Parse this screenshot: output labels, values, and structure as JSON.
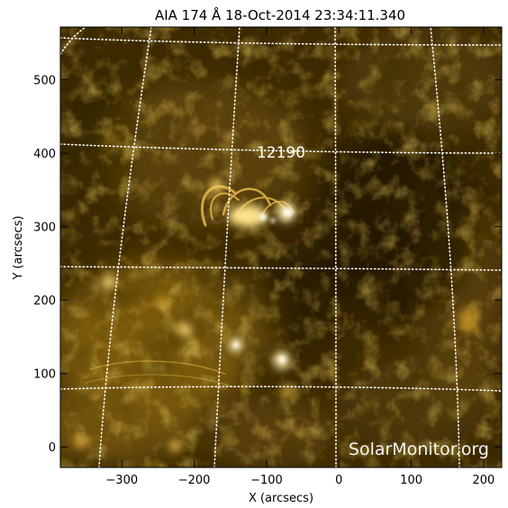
{
  "title": "AIA 174 Å 18-Oct-2014 23:34:11.340",
  "xlabel": "X (arcsecs)",
  "ylabel": "Y (arcsecs)",
  "watermark": "SolarMonitor.org",
  "region_label": "12190",
  "x_axis": {
    "range": [
      -385,
      225
    ],
    "ticks": [
      {
        "value": -300,
        "label": "−300"
      },
      {
        "value": -200,
        "label": "−200"
      },
      {
        "value": -100,
        "label": "−100"
      },
      {
        "value": 0,
        "label": "0"
      },
      {
        "value": 100,
        "label": "100"
      },
      {
        "value": 200,
        "label": "200"
      }
    ]
  },
  "y_axis": {
    "range": [
      -28,
      572
    ],
    "ticks": [
      {
        "value": 0,
        "label": "0"
      },
      {
        "value": 100,
        "label": "100"
      },
      {
        "value": 200,
        "label": "200"
      },
      {
        "value": 300,
        "label": "300"
      },
      {
        "value": 400,
        "label": "400"
      },
      {
        "value": 500,
        "label": "500"
      }
    ]
  },
  "colors": {
    "base": "#3d2a02",
    "dark": "#1e1400",
    "mid": "#7a5a10",
    "bright": "#d9a82a",
    "hot": "#fff3c0",
    "grid": "#ffffff"
  }
}
